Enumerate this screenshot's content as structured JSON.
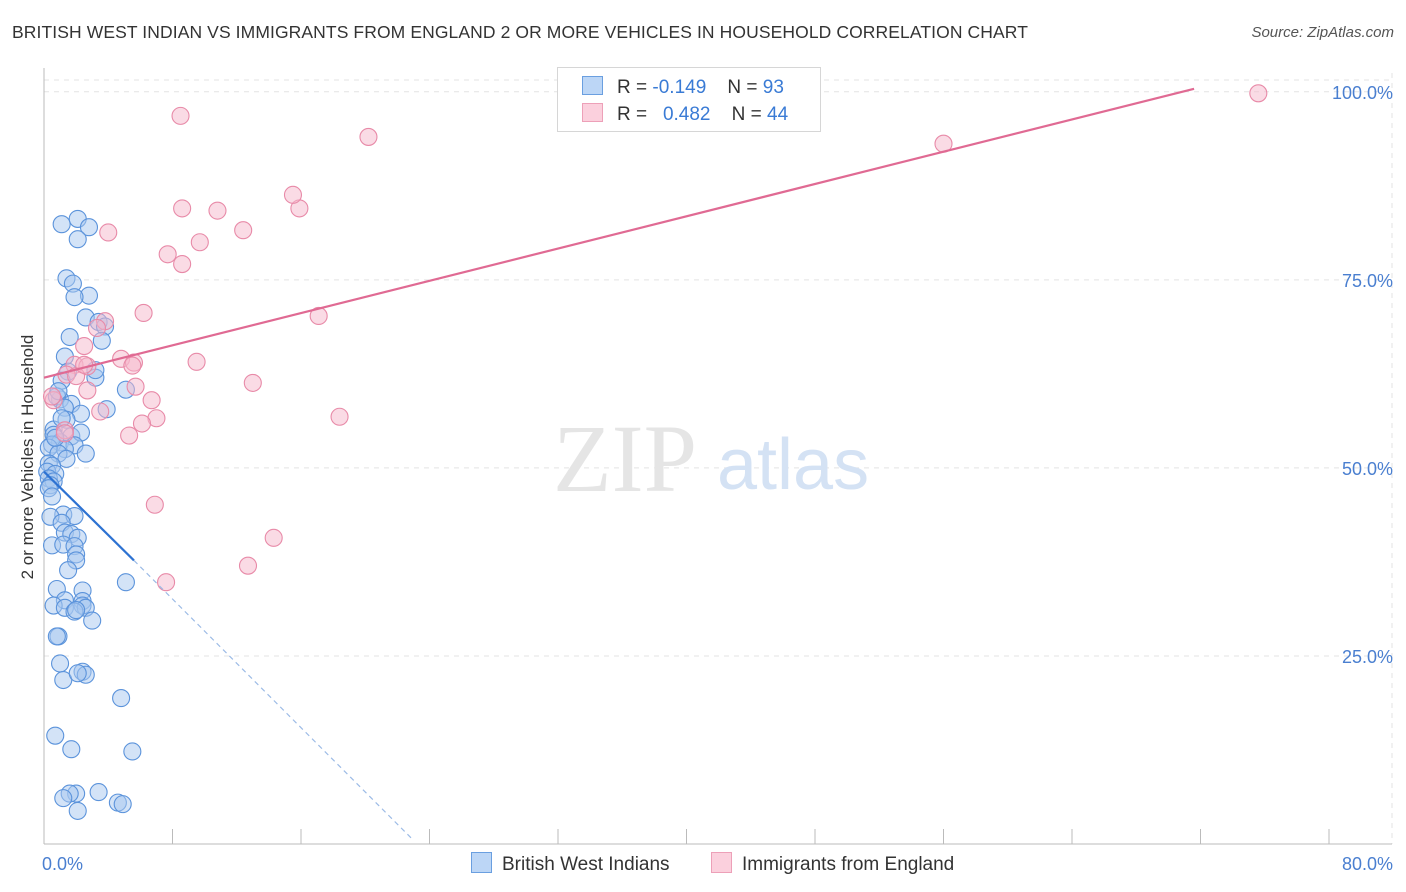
{
  "header": {
    "title": "BRITISH WEST INDIAN VS IMMIGRANTS FROM ENGLAND 2 OR MORE VEHICLES IN HOUSEHOLD CORRELATION CHART",
    "source": "Source: ZipAtlas.com"
  },
  "watermark": {
    "zip": "ZIP",
    "atlas": "atlas"
  },
  "legend": {
    "r_label": "R =",
    "n_label": "N =",
    "series": [
      {
        "r": "-0.149",
        "n": "93"
      },
      {
        "r": "0.482",
        "n": "44"
      }
    ]
  },
  "colors": {
    "blue_fill": "#a8c8f0",
    "blue_stroke": "#5b93db",
    "blue_line": "#2d72d2",
    "pink_fill": "#f6b8cb",
    "pink_stroke": "#e88aa8",
    "pink_line": "#e06a93",
    "tick_label": "#4a7fd0",
    "grid": "#e3e3e3"
  },
  "chart_data": {
    "type": "scatter",
    "title": "BRITISH WEST INDIAN VS IMMIGRANTS FROM ENGLAND 2 OR MORE VEHICLES IN HOUSEHOLD CORRELATION CHART",
    "xlabel": "",
    "ylabel": "2 or more Vehicles in Household",
    "xlim": [
      0,
      80
    ],
    "ylim": [
      0,
      102.5
    ],
    "x_tick_labels": [
      "0.0%",
      "80.0%"
    ],
    "y_ticks": [
      {
        "value": 100,
        "label": "100.0%"
      },
      {
        "value": 75,
        "label": "75.0%"
      },
      {
        "value": 50,
        "label": "50.0%"
      },
      {
        "value": 25,
        "label": "25.0%"
      }
    ],
    "series": [
      {
        "name": "British West Indians",
        "color": "#5b93db",
        "trend": {
          "x": [
            0.0,
            5.6
          ],
          "y": [
            49.5,
            37.7
          ]
        },
        "trend_extension": {
          "x": [
            5.6,
            23.0
          ],
          "y": [
            37.7,
            0.5
          ]
        },
        "points": [
          [
            1.1,
            82.4
          ],
          [
            2.1,
            83.1
          ],
          [
            2.8,
            82.0
          ],
          [
            2.1,
            80.4
          ],
          [
            1.4,
            75.2
          ],
          [
            1.8,
            74.5
          ],
          [
            2.8,
            72.9
          ],
          [
            1.9,
            72.7
          ],
          [
            2.6,
            70.0
          ],
          [
            3.4,
            69.4
          ],
          [
            1.6,
            67.4
          ],
          [
            3.8,
            68.8
          ],
          [
            3.6,
            66.9
          ],
          [
            1.3,
            64.8
          ],
          [
            1.5,
            62.8
          ],
          [
            3.2,
            62.0
          ],
          [
            1.1,
            61.6
          ],
          [
            5.1,
            60.4
          ],
          [
            1.0,
            59.1
          ],
          [
            0.8,
            59.5
          ],
          [
            1.7,
            58.5
          ],
          [
            1.3,
            58.0
          ],
          [
            2.3,
            57.2
          ],
          [
            3.9,
            57.8
          ],
          [
            1.4,
            56.4
          ],
          [
            0.6,
            55.1
          ],
          [
            0.6,
            54.4
          ],
          [
            1.7,
            54.2
          ],
          [
            2.3,
            54.7
          ],
          [
            1.0,
            53.4
          ],
          [
            0.5,
            53.1
          ],
          [
            1.9,
            53.0
          ],
          [
            1.3,
            52.5
          ],
          [
            0.3,
            52.7
          ],
          [
            0.9,
            51.9
          ],
          [
            1.4,
            51.2
          ],
          [
            0.3,
            50.6
          ],
          [
            0.5,
            50.3
          ],
          [
            0.2,
            49.5
          ],
          [
            0.7,
            49.2
          ],
          [
            0.3,
            48.6
          ],
          [
            0.6,
            48.2
          ],
          [
            0.4,
            47.7
          ],
          [
            0.3,
            47.3
          ],
          [
            0.5,
            46.2
          ],
          [
            1.2,
            43.8
          ],
          [
            0.4,
            43.5
          ],
          [
            1.9,
            43.6
          ],
          [
            1.1,
            42.7
          ],
          [
            1.3,
            41.4
          ],
          [
            1.7,
            41.2
          ],
          [
            2.1,
            40.7
          ],
          [
            0.5,
            39.7
          ],
          [
            1.2,
            39.8
          ],
          [
            1.9,
            39.6
          ],
          [
            2.0,
            38.5
          ],
          [
            2.0,
            37.7
          ],
          [
            1.5,
            36.4
          ],
          [
            0.8,
            33.9
          ],
          [
            2.4,
            33.7
          ],
          [
            5.1,
            34.8
          ],
          [
            1.3,
            32.4
          ],
          [
            2.4,
            32.3
          ],
          [
            0.6,
            31.7
          ],
          [
            2.4,
            31.7
          ],
          [
            2.6,
            31.4
          ],
          [
            1.3,
            31.4
          ],
          [
            1.9,
            30.9
          ],
          [
            2.0,
            31.1
          ],
          [
            3.0,
            29.7
          ],
          [
            0.9,
            27.6
          ],
          [
            0.8,
            27.6
          ],
          [
            1.0,
            24.0
          ],
          [
            2.4,
            22.9
          ],
          [
            2.6,
            22.5
          ],
          [
            1.2,
            21.8
          ],
          [
            2.1,
            22.7
          ],
          [
            4.8,
            19.4
          ],
          [
            0.7,
            14.4
          ],
          [
            1.7,
            12.6
          ],
          [
            5.5,
            12.3
          ],
          [
            2.0,
            6.7
          ],
          [
            1.6,
            6.7
          ],
          [
            3.4,
            6.9
          ],
          [
            1.2,
            6.1
          ],
          [
            4.6,
            5.5
          ],
          [
            4.9,
            5.3
          ],
          [
            2.1,
            4.4
          ],
          [
            0.7,
            54.0
          ],
          [
            1.1,
            56.6
          ],
          [
            2.6,
            51.9
          ],
          [
            0.9,
            60.2
          ],
          [
            3.2,
            63.0
          ]
        ]
      },
      {
        "name": "Immigrants from England",
        "color": "#e88aa8",
        "trend": {
          "x": [
            0.0,
            71.6
          ],
          "y": [
            62.0,
            100.4
          ]
        },
        "points": [
          [
            8.5,
            96.8
          ],
          [
            20.2,
            94.0
          ],
          [
            15.9,
            84.5
          ],
          [
            15.5,
            86.3
          ],
          [
            8.6,
            84.5
          ],
          [
            10.8,
            84.2
          ],
          [
            12.4,
            81.6
          ],
          [
            9.7,
            80.0
          ],
          [
            4.0,
            81.3
          ],
          [
            7.7,
            78.4
          ],
          [
            8.6,
            77.1
          ],
          [
            3.8,
            69.5
          ],
          [
            6.2,
            70.6
          ],
          [
            17.1,
            70.2
          ],
          [
            3.3,
            68.6
          ],
          [
            2.5,
            66.2
          ],
          [
            4.8,
            64.5
          ],
          [
            5.6,
            64.0
          ],
          [
            9.5,
            64.1
          ],
          [
            1.9,
            63.7
          ],
          [
            2.7,
            63.5
          ],
          [
            1.4,
            62.4
          ],
          [
            2.0,
            62.2
          ],
          [
            2.7,
            60.3
          ],
          [
            13.0,
            61.3
          ],
          [
            5.7,
            60.8
          ],
          [
            6.7,
            59.0
          ],
          [
            0.6,
            59.0
          ],
          [
            0.5,
            59.5
          ],
          [
            3.5,
            57.5
          ],
          [
            7.0,
            56.6
          ],
          [
            18.4,
            56.8
          ],
          [
            6.1,
            55.9
          ],
          [
            1.3,
            55.0
          ],
          [
            5.3,
            54.3
          ],
          [
            1.3,
            54.6
          ],
          [
            6.9,
            45.1
          ],
          [
            14.3,
            40.7
          ],
          [
            12.7,
            37.0
          ],
          [
            7.6,
            34.8
          ],
          [
            56.0,
            93.1
          ],
          [
            75.6,
            99.8
          ],
          [
            5.5,
            63.6
          ],
          [
            2.5,
            63.7
          ]
        ]
      }
    ]
  },
  "bottom_legend": {
    "items": [
      {
        "label": "British West Indians"
      },
      {
        "label": "Immigrants from England"
      }
    ]
  }
}
